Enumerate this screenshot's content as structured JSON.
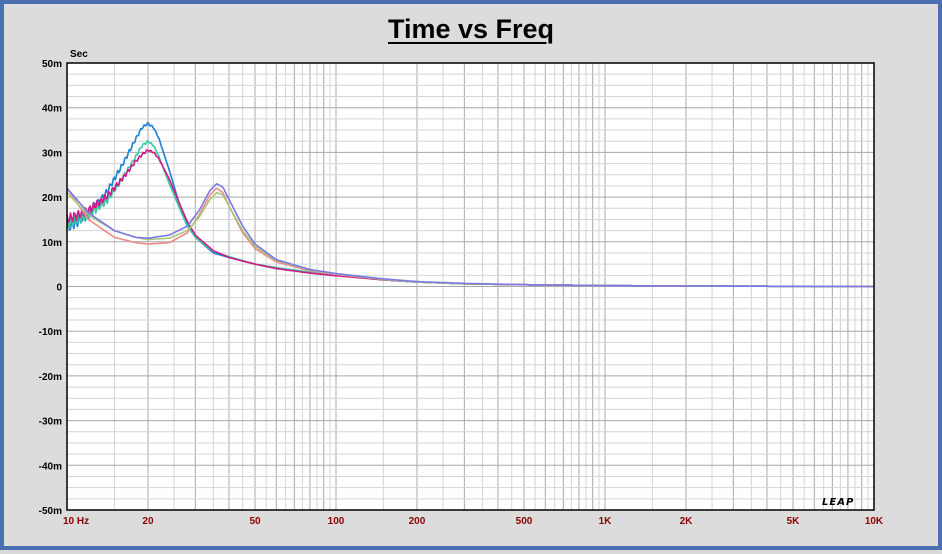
{
  "chart_data": {
    "type": "line",
    "title": "Time vs Freq",
    "ylabel": "Sec",
    "xlabel": "",
    "x_scale": "log",
    "xlim": [
      10,
      10000
    ],
    "ylim": [
      -0.05,
      0.05
    ],
    "grid": true,
    "y_tick_labels": [
      "50m",
      "40m",
      "30m",
      "20m",
      "10m",
      "0",
      "-10m",
      "-20m",
      "-30m",
      "-40m",
      "-50m"
    ],
    "y_tick_values": [
      0.05,
      0.04,
      0.03,
      0.02,
      0.01,
      0,
      -0.01,
      -0.02,
      -0.03,
      -0.04,
      -0.05
    ],
    "x_tick_labels": [
      "10 Hz",
      "20",
      "50",
      "100",
      "200",
      "500",
      "1K",
      "2K",
      "5K",
      "10K"
    ],
    "x_tick_values": [
      10,
      20,
      50,
      100,
      200,
      500,
      1000,
      2000,
      5000,
      10000
    ],
    "logo_text": "LEAP",
    "series": [
      {
        "color": "#1a7fd4",
        "ripple": true,
        "x": [
          10,
          12,
          14,
          16,
          18,
          19,
          20,
          21,
          22,
          24,
          26,
          28,
          30,
          35,
          40,
          50,
          60,
          80,
          100,
          150,
          200,
          300,
          500,
          1000,
          2000,
          10000
        ],
        "y": [
          0.013,
          0.016,
          0.021,
          0.027,
          0.033,
          0.0355,
          0.0365,
          0.0355,
          0.033,
          0.026,
          0.019,
          0.014,
          0.011,
          0.0075,
          0.0065,
          0.005,
          0.0042,
          0.0032,
          0.0025,
          0.0015,
          0.001,
          0.0006,
          0.0004,
          0.0002,
          0.0001,
          0.0
        ]
      },
      {
        "color": "#3cc9a0",
        "ripple": true,
        "x": [
          10,
          12,
          14,
          16,
          18,
          19,
          20,
          21,
          22,
          24,
          26,
          28,
          30,
          35,
          40,
          50,
          60,
          80,
          100,
          150,
          200,
          300,
          500,
          1000,
          2000,
          10000
        ],
        "y": [
          0.014,
          0.016,
          0.019,
          0.024,
          0.029,
          0.0315,
          0.0325,
          0.0315,
          0.029,
          0.023,
          0.018,
          0.0135,
          0.011,
          0.0078,
          0.0067,
          0.005,
          0.0042,
          0.0032,
          0.0025,
          0.0015,
          0.001,
          0.0006,
          0.0004,
          0.0002,
          0.0001,
          0.0
        ]
      },
      {
        "color": "#cc1a8a",
        "ripple": true,
        "x": [
          10,
          12,
          14,
          16,
          18,
          19,
          20,
          21,
          22,
          24,
          26,
          28,
          30,
          35,
          40,
          50,
          60,
          80,
          100,
          150,
          200,
          300,
          500,
          1000,
          2000,
          10000
        ],
        "y": [
          0.015,
          0.017,
          0.02,
          0.024,
          0.028,
          0.0295,
          0.0305,
          0.03,
          0.0285,
          0.024,
          0.019,
          0.0145,
          0.0115,
          0.008,
          0.0065,
          0.005,
          0.004,
          0.003,
          0.0024,
          0.0015,
          0.001,
          0.0006,
          0.0004,
          0.0002,
          0.0001,
          0.0
        ]
      },
      {
        "color": "#f08a8a",
        "ripple": false,
        "x": [
          10,
          12,
          15,
          18,
          20,
          24,
          28,
          31,
          34,
          36,
          38,
          40,
          45,
          50,
          60,
          80,
          100,
          150,
          200,
          300,
          500,
          1000,
          2000,
          10000
        ],
        "y": [
          0.022,
          0.015,
          0.011,
          0.0098,
          0.0095,
          0.0098,
          0.012,
          0.016,
          0.0205,
          0.022,
          0.021,
          0.018,
          0.012,
          0.0085,
          0.0055,
          0.0035,
          0.0027,
          0.0016,
          0.001,
          0.0006,
          0.0004,
          0.0002,
          0.0001,
          0.0
        ]
      },
      {
        "color": "#a8c878",
        "ripple": false,
        "x": [
          10,
          12,
          15,
          18,
          20,
          24,
          28,
          31,
          34,
          36,
          38,
          40,
          45,
          50,
          60,
          80,
          100,
          150,
          200,
          300,
          500,
          1000,
          2000,
          10000
        ],
        "y": [
          0.021,
          0.016,
          0.0125,
          0.011,
          0.0105,
          0.0108,
          0.0125,
          0.0155,
          0.0195,
          0.021,
          0.0205,
          0.018,
          0.0125,
          0.009,
          0.0058,
          0.0037,
          0.0028,
          0.0016,
          0.001,
          0.0006,
          0.0004,
          0.0002,
          0.0001,
          0.0
        ]
      },
      {
        "color": "#7a78e6",
        "ripple": false,
        "x": [
          10,
          12,
          15,
          18,
          20,
          24,
          28,
          31,
          34,
          36,
          38,
          40,
          45,
          50,
          60,
          80,
          100,
          150,
          200,
          300,
          500,
          1000,
          2000,
          10000
        ],
        "y": [
          0.022,
          0.0165,
          0.0125,
          0.011,
          0.0108,
          0.0115,
          0.0135,
          0.017,
          0.0215,
          0.023,
          0.0222,
          0.0195,
          0.0135,
          0.0095,
          0.006,
          0.0038,
          0.0029,
          0.0017,
          0.0011,
          0.0007,
          0.0004,
          0.0002,
          0.0001,
          0.0
        ]
      }
    ]
  }
}
